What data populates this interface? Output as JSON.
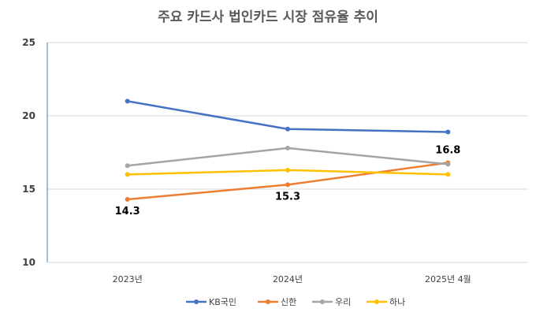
{
  "chart_data": {
    "type": "line",
    "title": "주요 카드사 법인카드 시장 점유율 추이",
    "categories": [
      "2023년",
      "2024년",
      "2025년 4월"
    ],
    "ylim": [
      10,
      25
    ],
    "yticks": [
      10,
      15,
      20,
      25
    ],
    "grid": true,
    "legend_position": "bottom",
    "series": [
      {
        "name": "KB국민",
        "color": "#4472C4",
        "values": [
          21.0,
          19.1,
          18.9
        ]
      },
      {
        "name": "신한",
        "color": "#ED7D31",
        "values": [
          14.3,
          15.3,
          16.8
        ]
      },
      {
        "name": "우리",
        "color": "#A5A5A5",
        "values": [
          16.6,
          17.8,
          16.7
        ]
      },
      {
        "name": "하나",
        "color": "#FFC000",
        "values": [
          16.0,
          16.3,
          16.0
        ]
      }
    ],
    "data_labels": [
      {
        "series": 1,
        "index": 0,
        "text": "14.3"
      },
      {
        "series": 1,
        "index": 1,
        "text": "15.3"
      },
      {
        "series": 1,
        "index": 2,
        "text": "16.8"
      }
    ]
  }
}
